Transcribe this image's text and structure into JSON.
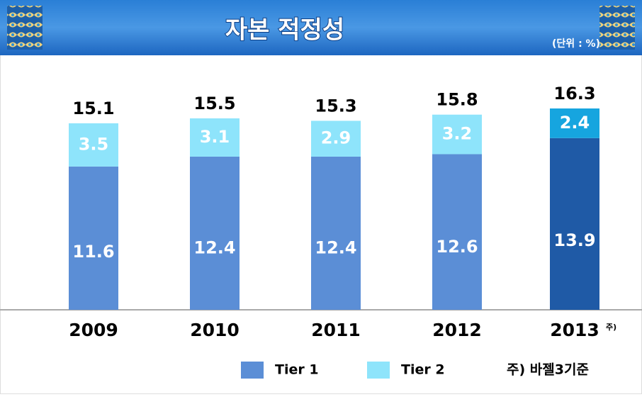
{
  "chart_data": {
    "type": "stacked-bar",
    "title": "자본 적정성",
    "unit": "(단위 : %)",
    "categories": [
      "2009",
      "2010",
      "2011",
      "2012",
      "2013"
    ],
    "category_notes": [
      null,
      null,
      null,
      null,
      "주)"
    ],
    "series": [
      {
        "name": "Tier 1",
        "color": "#5b8ed6",
        "colors": [
          "#5b8ed6",
          "#5b8ed6",
          "#5b8ed6",
          "#5b8ed6",
          "#1f5aa6"
        ],
        "values": [
          11.6,
          12.4,
          12.4,
          12.6,
          13.9
        ]
      },
      {
        "name": "Tier 2",
        "color": "#8ee4fb",
        "colors": [
          "#8ee4fb",
          "#8ee4fb",
          "#8ee4fb",
          "#8ee4fb",
          "#16a5df"
        ],
        "values": [
          3.5,
          3.1,
          2.9,
          3.2,
          2.4
        ]
      }
    ],
    "totals": [
      15.1,
      15.5,
      15.3,
      15.8,
      16.3
    ],
    "note": "주) 바젤3기준"
  }
}
